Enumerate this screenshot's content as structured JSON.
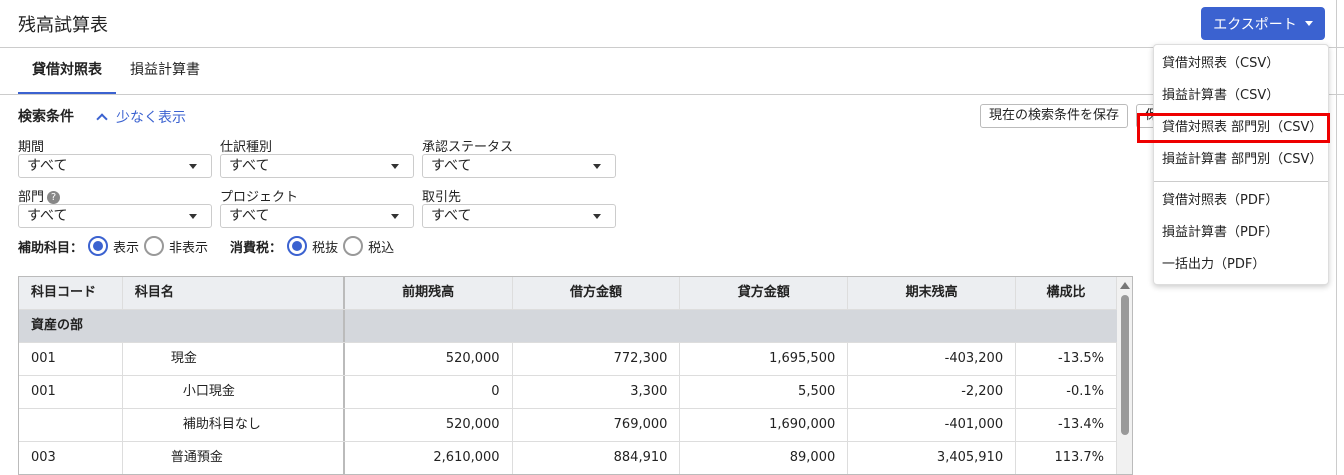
{
  "header": {
    "title": "残高試算表",
    "export_label": "エクスポート"
  },
  "tabs": [
    {
      "label": "貸借対照表"
    },
    {
      "label": "損益計算書"
    }
  ],
  "search": {
    "title": "検索条件",
    "toggle_label": "少なく表示",
    "save_label": "現在の検索条件を保存",
    "hidden_button_label": "保",
    "fields": [
      {
        "label": "期間",
        "value": "すべて"
      },
      {
        "label": "仕訳種別",
        "value": "すべて"
      },
      {
        "label": "承認ステータス",
        "value": "すべて"
      },
      {
        "label": "部門",
        "value": "すべて"
      },
      {
        "label": "プロジェクト",
        "value": "すべて"
      },
      {
        "label": "取引先",
        "value": "すべて"
      }
    ],
    "sub_label": "補助科目：",
    "sub_show": "表示",
    "sub_hide": "非表示",
    "tax_label": "消費税：",
    "tax_excl": "税抜",
    "tax_incl": "税込"
  },
  "table": {
    "headers": [
      "科目コード",
      "科目名",
      "前期残高",
      "借方金額",
      "貸方金額",
      "期末残高",
      "構成比"
    ],
    "section": "資産の部",
    "rows": [
      [
        "001",
        "現金",
        "520,000",
        "772,300",
        "1,695,500",
        "-403,200",
        "-13.5%"
      ],
      [
        "001",
        "小口現金",
        "0",
        "3,300",
        "5,500",
        "-2,200",
        "-0.1%"
      ],
      [
        "",
        "補助科目なし",
        "520,000",
        "769,000",
        "1,690,000",
        "-401,000",
        "-13.4%"
      ],
      [
        "003",
        "普通預金",
        "2,610,000",
        "884,910",
        "89,000",
        "3,405,910",
        "113.7%"
      ]
    ]
  },
  "export_menu": {
    "items": [
      "貸借対照表（CSV）",
      "損益計算書（CSV）",
      "貸借対照表 部門別（CSV）",
      "損益計算書 部門別（CSV）",
      "貸借対照表（PDF）",
      "損益計算書（PDF）",
      "一括出力（PDF）"
    ],
    "highlighted_index": 2
  },
  "colors": {
    "accent": "#3b62d0",
    "highlight": "#e00000"
  }
}
